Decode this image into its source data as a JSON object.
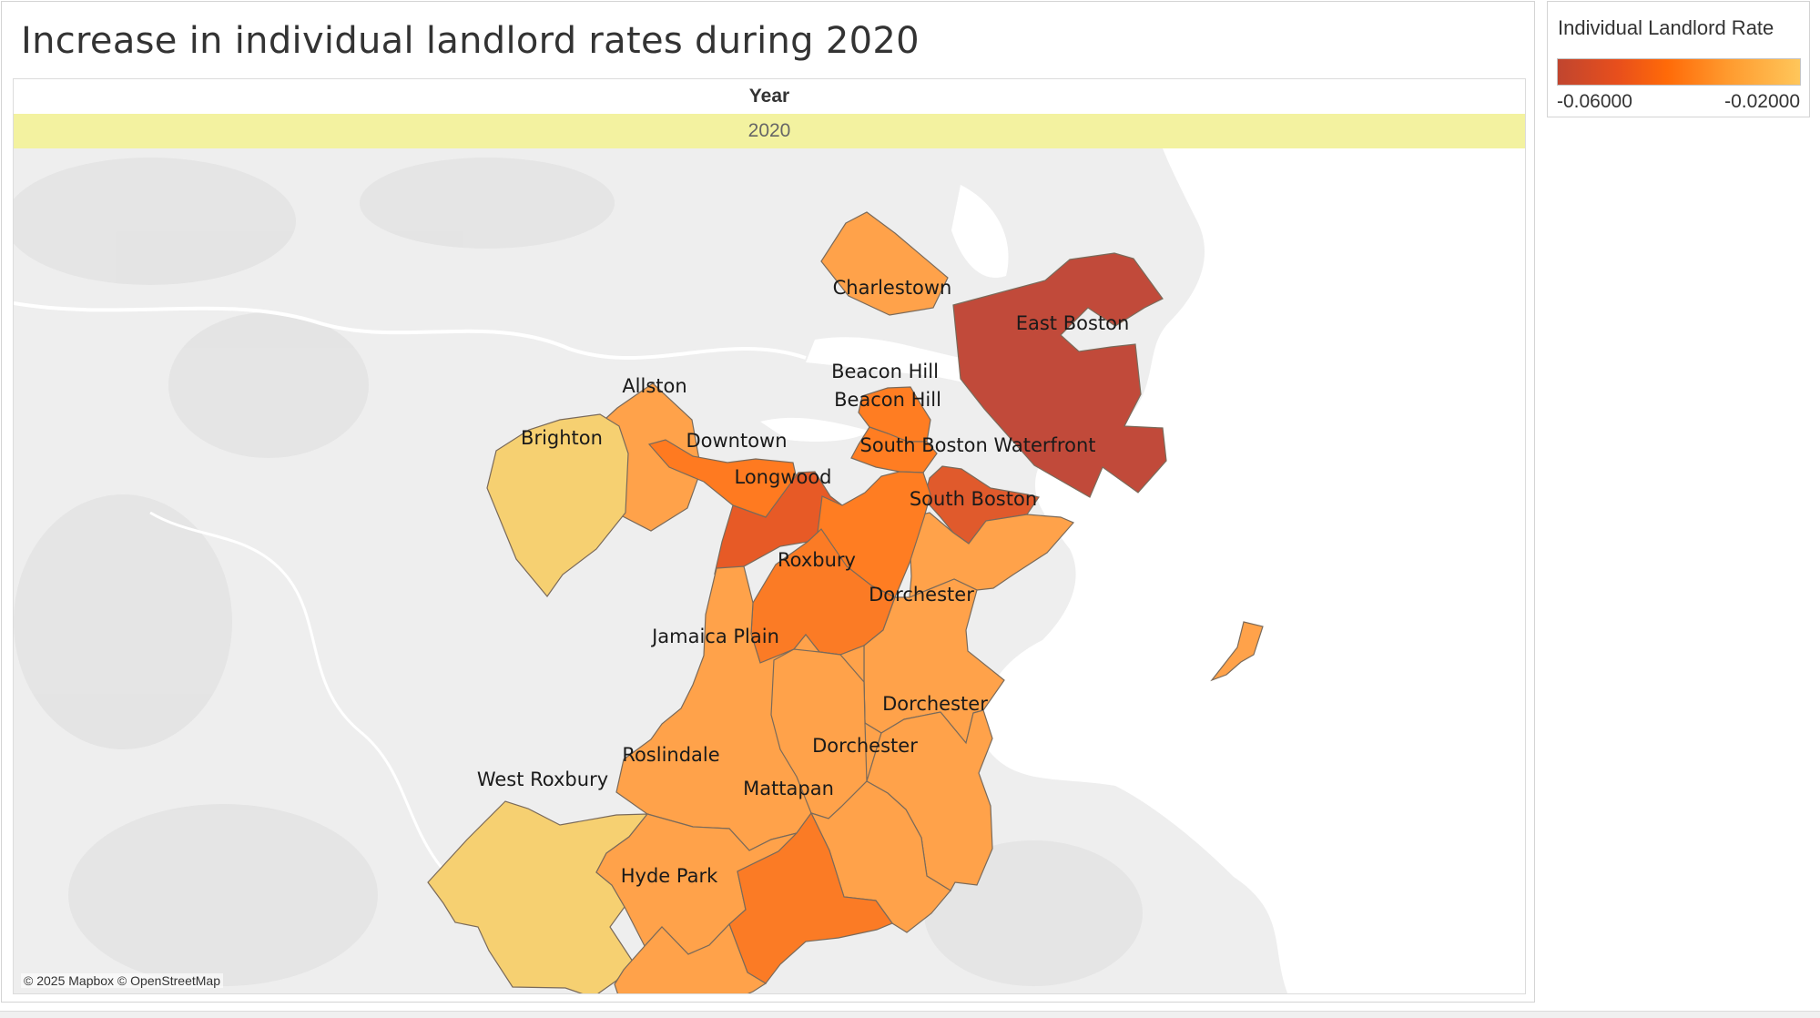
{
  "title": "Increase in individual landlord rates during 2020",
  "header": {
    "year_label": "Year",
    "year_value": "2020"
  },
  "legend": {
    "title": "Individual Landlord Rate",
    "min_label": "-0.06000",
    "max_label": "-0.02000",
    "min_value": -0.06,
    "max_value": -0.02,
    "colors": [
      "#c0452f",
      "#ff6a08",
      "#ffc65a"
    ]
  },
  "attribution": "© 2025 Mapbox © OpenStreetMap",
  "neighborhoods": [
    {
      "id": "charlestown",
      "name": "Charlestown",
      "color": "#ffa24a"
    },
    {
      "id": "east-boston",
      "name": "East Boston",
      "color": "#c14a3a"
    },
    {
      "id": "beacon-hill-1",
      "name": "Beacon Hill",
      "color": "#ff7d22"
    },
    {
      "id": "beacon-hill-2",
      "name": "Beacon Hill",
      "color": "#ff7d22"
    },
    {
      "id": "allston",
      "name": "Allston",
      "color": "#ffa24a"
    },
    {
      "id": "brighton",
      "name": "Brighton",
      "color": "#f6d071"
    },
    {
      "id": "downtown",
      "name": "Downtown",
      "color": "#ff7a20"
    },
    {
      "id": "longwood",
      "name": "Longwood",
      "color": "#e75a26"
    },
    {
      "id": "south-boston-waterfront",
      "name": "South Boston Waterfront",
      "color": "#e05a2c"
    },
    {
      "id": "south-boston",
      "name": "South Boston",
      "color": "#ffa24a"
    },
    {
      "id": "roxbury",
      "name": "Roxbury",
      "color": "#fb7b25"
    },
    {
      "id": "dorchester-1",
      "name": "Dorchester",
      "color": "#ffa24a"
    },
    {
      "id": "jamaica-plain",
      "name": "Jamaica Plain",
      "color": "#ffa24a"
    },
    {
      "id": "dorchester-2",
      "name": "Dorchester",
      "color": "#ffa24a"
    },
    {
      "id": "dorchester-3",
      "name": "Dorchester",
      "color": "#ffa24a"
    },
    {
      "id": "west-roxbury",
      "name": "West Roxbury",
      "color": "#f6d071"
    },
    {
      "id": "roslindale",
      "name": "Roslindale",
      "color": "#ffa24a"
    },
    {
      "id": "mattapan",
      "name": "Mattapan",
      "color": "#fb7b25"
    },
    {
      "id": "hyde-park",
      "name": "Hyde Park",
      "color": "#ffa24a"
    }
  ]
}
